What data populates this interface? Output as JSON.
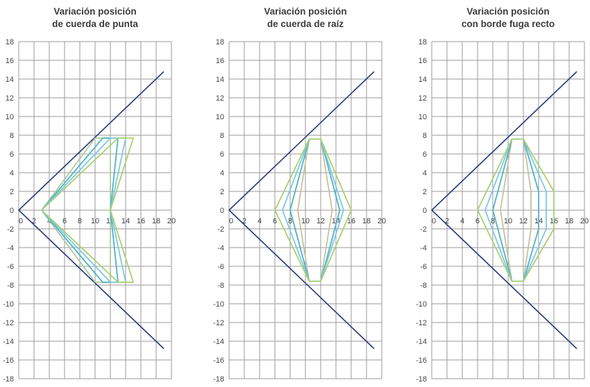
{
  "chart_data": [
    {
      "type": "line",
      "title": "Variación posición\nde cuerda de punta",
      "xlabel": "",
      "ylabel": "",
      "xlim": [
        0,
        20
      ],
      "ylim": [
        -18,
        18
      ],
      "xticks": [
        0,
        2,
        4,
        6,
        8,
        10,
        12,
        14,
        16,
        18,
        20
      ],
      "yticks": [
        18,
        16,
        14,
        12,
        10,
        8,
        6,
        4,
        2,
        0,
        -2,
        -4,
        -6,
        -8,
        -10,
        -12,
        -14,
        -16,
        -18
      ],
      "grid": true,
      "series": [
        {
          "color": "#2e3f7c",
          "points": [
            [
              19,
              14.8
            ],
            [
              0,
              0
            ],
            [
              19,
              -14.8
            ]
          ]
        },
        {
          "color": "#b0c8a0",
          "points": [
            [
              12,
              0
            ],
            [
              12,
              7.7
            ],
            [
              10,
              7.7
            ],
            [
              3,
              0
            ],
            [
              10,
              -7.7
            ],
            [
              12,
              -7.7
            ],
            [
              12,
              0
            ]
          ]
        },
        {
          "color": "#4db3c5",
          "points": [
            [
              12,
              0
            ],
            [
              13,
              7.7
            ],
            [
              11,
              7.7
            ],
            [
              3,
              0
            ],
            [
              11,
              -7.7
            ],
            [
              13,
              -7.7
            ],
            [
              12,
              0
            ]
          ]
        },
        {
          "color": "#7ec8e3",
          "points": [
            [
              12,
              0
            ],
            [
              14,
              7.7
            ],
            [
              12,
              7.7
            ],
            [
              3,
              0
            ],
            [
              12,
              -7.7
            ],
            [
              14,
              -7.7
            ],
            [
              12,
              0
            ]
          ]
        },
        {
          "color": "#a8d070",
          "points": [
            [
              12,
              0
            ],
            [
              15,
              7.7
            ],
            [
              13,
              7.7
            ],
            [
              3,
              0
            ],
            [
              13,
              -7.7
            ],
            [
              15,
              -7.7
            ],
            [
              12,
              0
            ]
          ]
        }
      ]
    },
    {
      "type": "line",
      "title": "Variación posición\nde cuerda de raíz",
      "xlabel": "",
      "ylabel": "",
      "xlim": [
        0,
        20
      ],
      "ylim": [
        -18,
        18
      ],
      "xticks": [
        0,
        2,
        4,
        6,
        8,
        10,
        12,
        14,
        16,
        18,
        20
      ],
      "yticks": [
        18,
        16,
        14,
        12,
        10,
        8,
        6,
        4,
        2,
        0,
        -2,
        -4,
        -6,
        -8,
        -10,
        -12,
        -14,
        -16,
        -18
      ],
      "grid": true,
      "series": [
        {
          "color": "#2e3f7c",
          "points": [
            [
              19,
              14.8
            ],
            [
              0,
              0
            ],
            [
              19,
              -14.8
            ]
          ]
        },
        {
          "color": "#c8c0a0",
          "points": [
            [
              10.5,
              7.6
            ],
            [
              9,
              0
            ],
            [
              10.5,
              -7.6
            ],
            [
              12,
              -7.6
            ],
            [
              13.5,
              0
            ],
            [
              12,
              7.6
            ],
            [
              10.5,
              7.6
            ]
          ]
        },
        {
          "color": "#4db3c5",
          "points": [
            [
              10.5,
              7.6
            ],
            [
              8,
              0
            ],
            [
              10.5,
              -7.6
            ],
            [
              12,
              -7.6
            ],
            [
              14.5,
              0
            ],
            [
              12,
              7.6
            ],
            [
              10.5,
              7.6
            ]
          ]
        },
        {
          "color": "#7ec8e3",
          "points": [
            [
              10.5,
              7.6
            ],
            [
              7,
              0
            ],
            [
              10.5,
              -7.6
            ],
            [
              12,
              -7.6
            ],
            [
              15,
              0
            ],
            [
              12,
              7.6
            ],
            [
              10.5,
              7.6
            ]
          ]
        },
        {
          "color": "#a8d070",
          "points": [
            [
              10.5,
              7.6
            ],
            [
              6,
              0
            ],
            [
              10.5,
              -7.6
            ],
            [
              12,
              -7.6
            ],
            [
              16,
              0
            ],
            [
              12,
              7.6
            ],
            [
              10.5,
              7.6
            ]
          ]
        }
      ]
    },
    {
      "type": "line",
      "title": "Variación posición\ncon borde fuga recto",
      "xlabel": "",
      "ylabel": "",
      "xlim": [
        0,
        20
      ],
      "ylim": [
        -18,
        18
      ],
      "xticks": [
        0,
        2,
        4,
        6,
        8,
        10,
        12,
        14,
        16,
        18,
        20
      ],
      "yticks": [
        18,
        16,
        14,
        12,
        10,
        8,
        6,
        4,
        2,
        0,
        -2,
        -4,
        -6,
        -8,
        -10,
        -12,
        -14,
        -16,
        -18
      ],
      "grid": true,
      "series": [
        {
          "color": "#2e3f7c",
          "points": [
            [
              19,
              14.8
            ],
            [
              0,
              0
            ],
            [
              19,
              -14.8
            ]
          ]
        },
        {
          "color": "#c8c0a0",
          "points": [
            [
              10.5,
              7.6
            ],
            [
              9,
              0
            ],
            [
              10.5,
              -7.6
            ],
            [
              12,
              -7.6
            ],
            [
              13,
              -2
            ],
            [
              13,
              2
            ],
            [
              12,
              7.6
            ],
            [
              10.5,
              7.6
            ]
          ]
        },
        {
          "color": "#4db3c5",
          "points": [
            [
              10.5,
              7.6
            ],
            [
              8,
              0
            ],
            [
              10.5,
              -7.6
            ],
            [
              12,
              -7.6
            ],
            [
              14,
              -2
            ],
            [
              14,
              2
            ],
            [
              12,
              7.6
            ],
            [
              10.5,
              7.6
            ]
          ]
        },
        {
          "color": "#7ec8e3",
          "points": [
            [
              10.5,
              7.6
            ],
            [
              7,
              0
            ],
            [
              10.5,
              -7.6
            ],
            [
              12,
              -7.6
            ],
            [
              15,
              -2
            ],
            [
              15,
              2
            ],
            [
              12,
              7.6
            ],
            [
              10.5,
              7.6
            ]
          ]
        },
        {
          "color": "#a8d070",
          "points": [
            [
              10.5,
              7.6
            ],
            [
              6,
              0
            ],
            [
              10.5,
              -7.6
            ],
            [
              12,
              -7.6
            ],
            [
              16,
              -2
            ],
            [
              16,
              2
            ],
            [
              12,
              7.6
            ],
            [
              10.5,
              7.6
            ]
          ]
        }
      ]
    }
  ]
}
